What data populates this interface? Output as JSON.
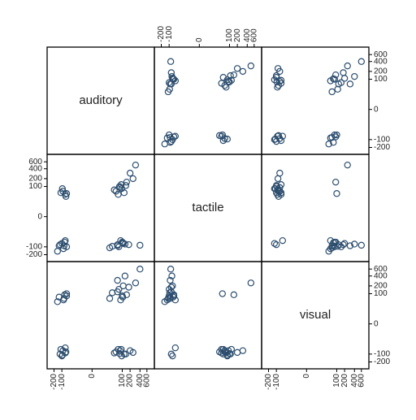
{
  "chart_data": {
    "type": "scatter-matrix",
    "variables": [
      {
        "name": "auditory",
        "values": [
          -150,
          -120,
          -90,
          -80,
          -70,
          -60,
          -100,
          -110,
          -75,
          -65,
          -85,
          -95,
          -130,
          -70,
          -60,
          20,
          40,
          60,
          80,
          100,
          120,
          70,
          90,
          110,
          50,
          60,
          75,
          85,
          95,
          130,
          150,
          200,
          300,
          400,
          250,
          30,
          65,
          105,
          140,
          180
        ]
      },
      {
        "name": "tactile",
        "values": [
          -150,
          -80,
          60,
          -90,
          40,
          -100,
          -70,
          50,
          -60,
          30,
          -120,
          80,
          -90,
          -50,
          45,
          -110,
          70,
          -80,
          90,
          -60,
          50,
          -100,
          120,
          -70,
          60,
          -90,
          100,
          -50,
          80,
          -75,
          150,
          300,
          500,
          -85,
          200,
          -95,
          40,
          -65,
          110,
          -80
        ]
      },
      {
        "name": "visual",
        "values": [
          40,
          -100,
          -70,
          60,
          -90,
          80,
          -120,
          -60,
          90,
          -80,
          50,
          -110,
          70,
          -50,
          100,
          60,
          -90,
          120,
          -70,
          80,
          -100,
          150,
          -60,
          200,
          -80,
          300,
          -95,
          50,
          -120,
          400,
          90,
          -70,
          250,
          600,
          -85,
          110,
          -60,
          70,
          -100,
          180
        ]
      }
    ],
    "axis": {
      "lim": [
        -330,
        880
      ],
      "ticks": [
        -200,
        -100,
        0,
        100,
        200,
        400,
        600
      ],
      "scale": "cube-root"
    },
    "color": "#2c4d6e"
  }
}
